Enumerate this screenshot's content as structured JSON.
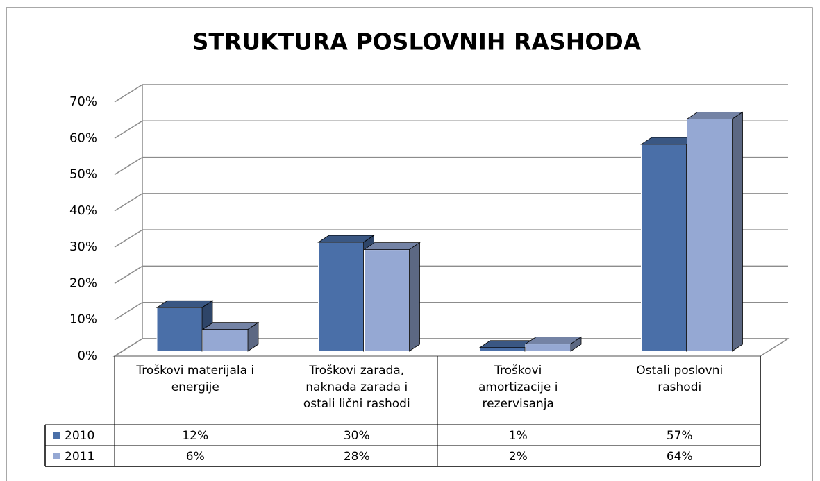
{
  "chart_data": {
    "type": "bar3d",
    "title": "STRUKTURA POSLOVNIH RASHODA",
    "categories": [
      "Troškovi materijala i energije",
      "Troškovi zarada, naknada zarada i ostali lični rashodi",
      "Troškovi amortizacije i rezervisanja",
      "Ostali poslovni rashodi"
    ],
    "series": [
      {
        "name": "2010",
        "color": "#4a6fa8",
        "values": [
          12,
          30,
          1,
          57
        ],
        "value_labels": [
          "12%",
          "30%",
          "1%",
          "57%"
        ]
      },
      {
        "name": "2011",
        "color": "#95a8d3",
        "values": [
          6,
          28,
          2,
          64
        ],
        "value_labels": [
          "6%",
          "28%",
          "2%",
          "64%"
        ]
      }
    ],
    "ylim": [
      0,
      70
    ],
    "yticks": [
      {
        "value": 0,
        "label": "0%"
      },
      {
        "value": 10,
        "label": "10%"
      },
      {
        "value": 20,
        "label": "20%"
      },
      {
        "value": 30,
        "label": "30%"
      },
      {
        "value": 40,
        "label": "40%"
      },
      {
        "value": 50,
        "label": "50%"
      },
      {
        "value": 60,
        "label": "60%"
      },
      {
        "value": 70,
        "label": "70%"
      }
    ],
    "grid": true
  }
}
